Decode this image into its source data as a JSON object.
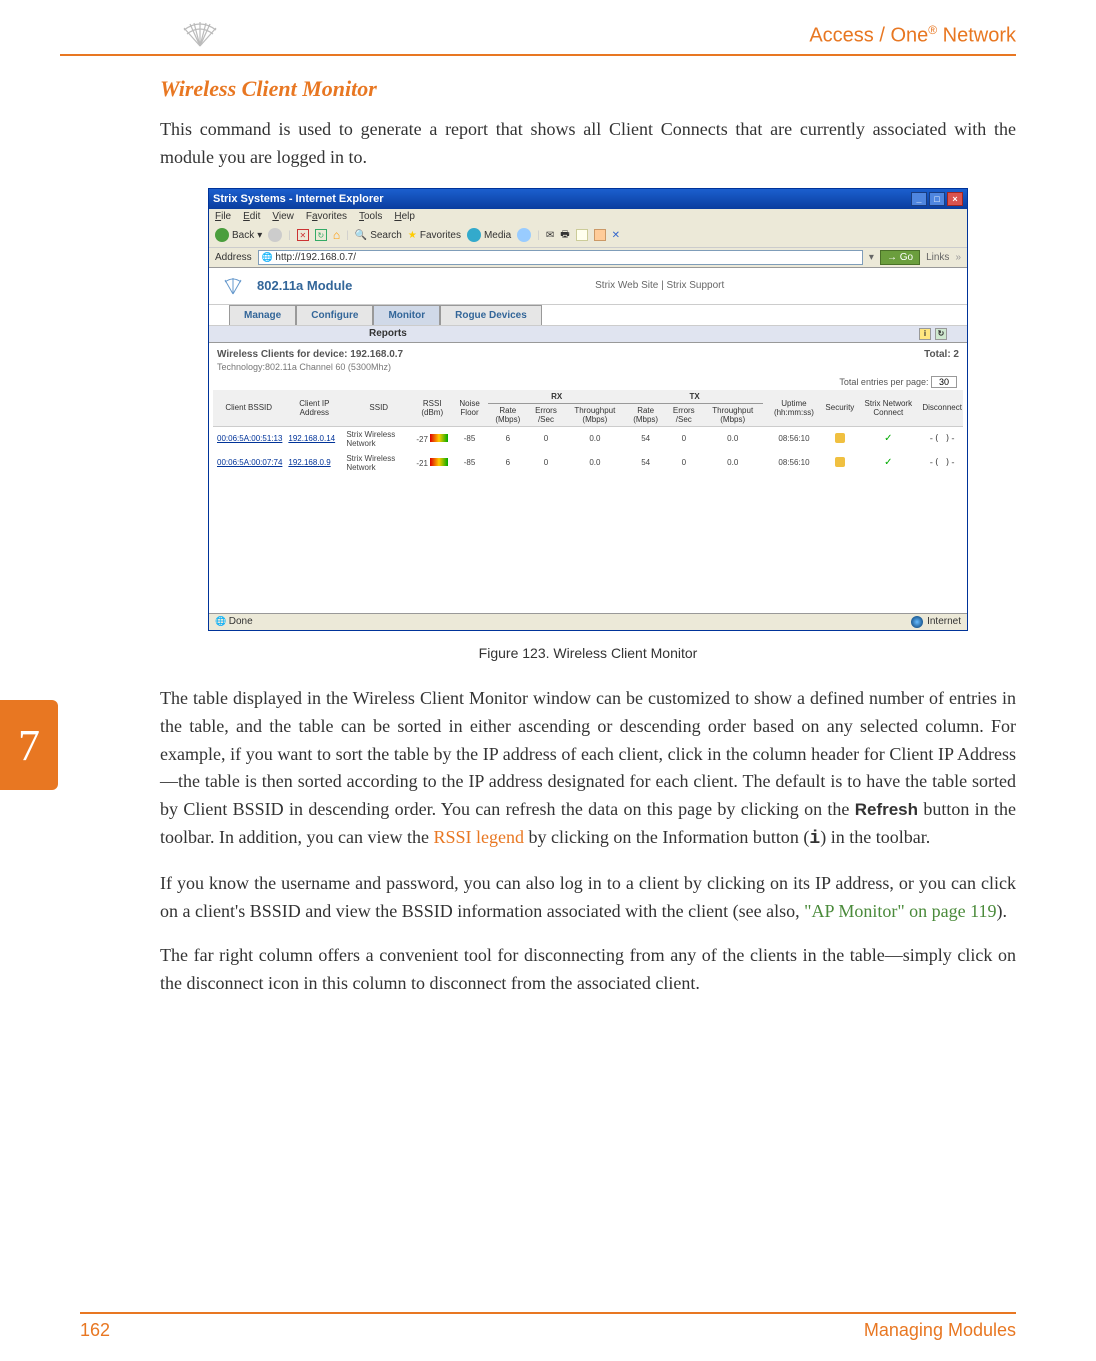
{
  "header": {
    "product": "Access / One",
    "reg": "®",
    "suffix": " Network"
  },
  "chapter": "7",
  "section_heading": "Wireless Client Monitor",
  "intro": "This command is used to generate a report that shows all Client Connects that are currently associated with the module you are logged in to.",
  "figure_caption": "Figure 123. Wireless Client Monitor",
  "para2_a": "The table displayed in the Wireless Client Monitor window can be customized to show a defined number of entries in the table, and the table can be sorted in either ascending or descending order based on any selected column. For example, if you want to sort the table by the IP address of each client, click in the column header for Client IP Address—the table is then sorted according to the IP address designated for each client. The default is to have the table sorted by Client BSSID in descending order. You can refresh the data on this page by clicking on the ",
  "para2_refresh": "Refresh",
  "para2_b": " button in the toolbar. In addition, you can view the ",
  "para2_rssi": "RSSI legend",
  "para2_c": " by clicking on the Information button (",
  "para2_i": "i",
  "para2_d": ") in the toolbar.",
  "para3_a": "If you know the username and password, you can also log in to a client by clicking on its IP address, or you can click on a client's BSSID and view the BSSID information associated with the client (see also, ",
  "para3_link": "\"AP Monitor\" on page 119",
  "para3_b": ").",
  "para4": "The far right column offers a convenient tool for disconnecting from any of the clients in the table—simply click on the disconnect icon in this column to disconnect from the associated client.",
  "footer": {
    "page": "162",
    "section": "Managing Modules"
  },
  "screenshot": {
    "window_title": "Strix Systems - Internet Explorer",
    "menubar": [
      "File",
      "Edit",
      "View",
      "Favorites",
      "Tools",
      "Help"
    ],
    "toolbar": {
      "back": "Back",
      "search": "Search",
      "favorites": "Favorites",
      "media": "Media"
    },
    "address_label": "Address",
    "address_url": "http://192.168.0.7/",
    "go": "Go",
    "links": "Links",
    "module_title": "802.11a Module",
    "module_links": "Strix Web Site  |  Strix Support",
    "tabs": [
      "Manage",
      "Configure",
      "Monitor",
      "Rogue Devices"
    ],
    "subtab": "Reports",
    "report_title_a": "Wireless Clients for device: 192.168.0.7",
    "report_title_b": "Total: 2",
    "technology": "Technology:802.11a Channel 60 (5300Mhz)",
    "entries_label": "Total entries per page:",
    "entries_value": "30",
    "group_rx": "RX",
    "group_tx": "TX",
    "columns": [
      "Client BSSID",
      "Client IP Address",
      "SSID",
      "RSSI (dBm)",
      "Noise Floor",
      "Rate (Mbps)",
      "Errors /Sec",
      "Throughput (Mbps)",
      "Rate (Mbps)",
      "Errors /Sec",
      "Throughput (Mbps)",
      "Uptime (hh:mm:ss)",
      "Security",
      "Strix Network Connect",
      "Disconnect"
    ],
    "rows": [
      {
        "bssid": "00:06:5A:00:51:13",
        "ip": "192.168.0.14",
        "ssid": "Strix Wireless Network",
        "rssi": "-27",
        "noise": "-85",
        "rx_rate": "6",
        "rx_err": "0",
        "rx_tp": "0.0",
        "tx_rate": "54",
        "tx_err": "0",
        "tx_tp": "0.0",
        "uptime": "08:56:10",
        "dc": "-( )-"
      },
      {
        "bssid": "00:06:5A:00:07:74",
        "ip": "192.168.0.9",
        "ssid": "Strix Wireless Network",
        "rssi": "-21",
        "noise": "-85",
        "rx_rate": "6",
        "rx_err": "0",
        "rx_tp": "0.0",
        "tx_rate": "54",
        "tx_err": "0",
        "tx_tp": "0.0",
        "uptime": "08:56:10",
        "dc": "-( )-"
      }
    ],
    "status_done": "Done",
    "status_zone": "Internet"
  },
  "colors": {
    "accent": "#e87722",
    "link_green": "#4a8a3a",
    "ie_title": "#1b5fce"
  }
}
